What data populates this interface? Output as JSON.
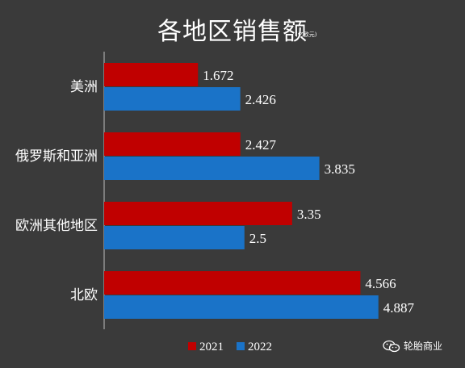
{
  "chart_data": {
    "type": "bar",
    "orientation": "horizontal",
    "title": "各地区销售额",
    "unit": "(亿欧元)",
    "categories": [
      "美洲",
      "俄罗斯和亚洲",
      "欧洲其他地区",
      "北欧"
    ],
    "series": [
      {
        "name": "2021",
        "color": "#c00000",
        "values": [
          1.672,
          2.427,
          3.35,
          4.566
        ],
        "labels": [
          "1.672",
          "2.427",
          "3.35",
          "4.566"
        ]
      },
      {
        "name": "2022",
        "color": "#1a73c8",
        "values": [
          2.426,
          3.835,
          2.5,
          4.887
        ],
        "labels": [
          "2.426",
          "3.835",
          "2.5",
          "4.887"
        ]
      }
    ],
    "xlim": [
      0,
      6.2
    ],
    "grid": false,
    "legend": "bottom"
  },
  "watermark": {
    "text": "轮胎商业",
    "icon": "wechat-icon"
  }
}
